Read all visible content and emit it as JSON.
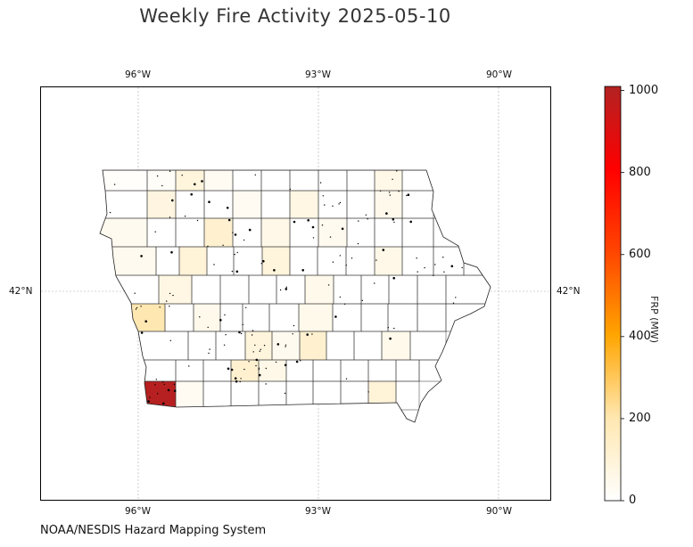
{
  "title": "Weekly Fire Activity 2025-05-10",
  "credit": "NOAA/NESDIS Hazard Mapping System",
  "map": {
    "lon_ticks": [
      {
        "lon": -96,
        "label": "96°W"
      },
      {
        "lon": -93,
        "label": "93°W"
      },
      {
        "lon": -90,
        "label": "90°W"
      }
    ],
    "lat_ticks": [
      {
        "lat": 42,
        "label": "42°N"
      }
    ]
  },
  "colorbar": {
    "label": "FRP (MW)",
    "min": 0,
    "max": 1010,
    "ticks": [
      0,
      200,
      400,
      600,
      800,
      1000
    ],
    "colors": [
      "#ffffff",
      "#ffe7b0",
      "#ffa500",
      "#ff4500",
      "#ff0000",
      "#b22222"
    ]
  },
  "colors": {
    "county_border": "#333333",
    "fire_point": "#000000",
    "grid": "#aaaaaa"
  },
  "counties": [
    {
      "id": "c1",
      "frp": 10
    },
    {
      "id": "c2",
      "frp": 40
    },
    {
      "id": "c3",
      "frp": 90
    },
    {
      "id": "c4",
      "frp": 60
    },
    {
      "id": "c5",
      "frp": 20
    },
    {
      "id": "c6",
      "frp": 30
    },
    {
      "id": "c7",
      "frp": 80
    },
    {
      "id": "c8",
      "frp": 30
    },
    {
      "id": "c9",
      "frp": 70
    },
    {
      "id": "c10",
      "frp": 50
    },
    {
      "id": "c11",
      "frp": 120
    },
    {
      "id": "c12",
      "frp": 60
    },
    {
      "id": "c13",
      "frp": 40
    },
    {
      "id": "c14",
      "frp": 100
    },
    {
      "id": "c15",
      "frp": 90
    },
    {
      "id": "c16",
      "frp": 60
    },
    {
      "id": "c17",
      "frp": 50
    },
    {
      "id": "c18",
      "frp": 200
    },
    {
      "id": "c19",
      "frp": 120
    },
    {
      "id": "c20",
      "frp": 1000
    },
    {
      "id": "c21",
      "frp": 30
    },
    {
      "id": "c22",
      "frp": 40
    },
    {
      "id": "c23",
      "frp": 70
    },
    {
      "id": "c24",
      "frp": 50
    }
  ]
}
